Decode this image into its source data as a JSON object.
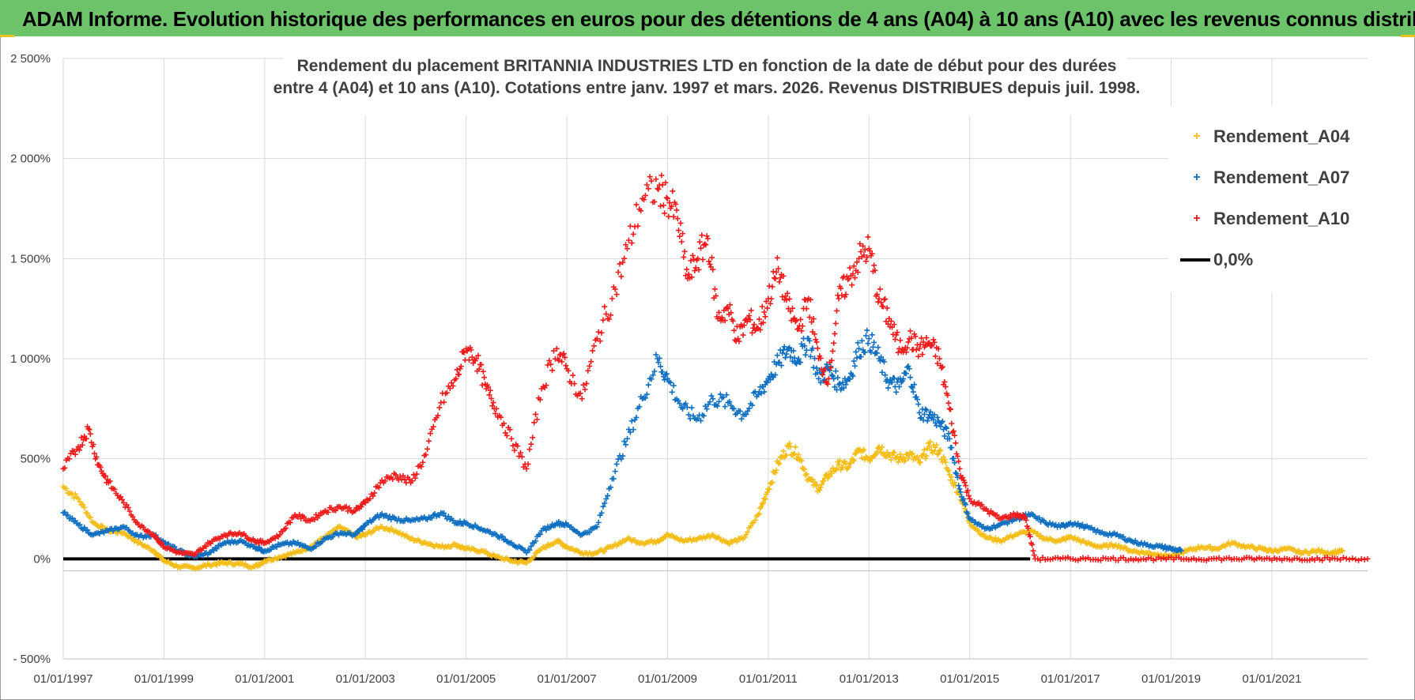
{
  "header": {
    "title": "ADAM Informe. Evolution historique des performances en euros pour des détentions de 4 ans (A04) à 10 ans (A10) avec les revenus connus distribués"
  },
  "colors": {
    "banner": "#6cc36a",
    "A04": "#f5bd17",
    "A07": "#0f6fc0",
    "A10": "#ee1c1c",
    "zero": "#000000"
  },
  "chart_data": {
    "type": "scatter",
    "title_line1": "Rendement du placement BRITANNIA  INDUSTRIES LTD en fonction de la date de début pour des durées",
    "title_line2": "entre 4 (A04) et 10 ans (A10). Cotations entre janv. 1997 et mars. 2026. Revenus DISTRIBUES depuis juil. 1998.",
    "xlabel": "",
    "ylabel": "",
    "xlim": [
      1997.0,
      2022.9
    ],
    "ylim": [
      -500,
      2500
    ],
    "x_ticks": [
      1997,
      1999,
      2001,
      2003,
      2005,
      2007,
      2009,
      2011,
      2013,
      2015,
      2017,
      2019,
      2021
    ],
    "x_tick_labels": [
      "01/01/1997",
      "01/01/1999",
      "01/01/2001",
      "01/01/2003",
      "01/01/2005",
      "01/01/2007",
      "01/01/2009",
      "01/01/2011",
      "01/01/2013",
      "01/01/2015",
      "01/01/2017",
      "01/01/2019",
      "01/01/2021"
    ],
    "y_ticks": [
      -500,
      0,
      500,
      1000,
      1500,
      2000,
      2500
    ],
    "y_tick_labels": [
      "- 500%",
      "0%",
      "500%",
      "1 000%",
      "1 500%",
      "2 000%",
      "2 500%"
    ],
    "legend_position": "top-right",
    "grid": true,
    "series": [
      {
        "name": "Rendement_A04",
        "marker": "+",
        "points": [
          [
            1997.0,
            360
          ],
          [
            1997.3,
            300
          ],
          [
            1997.6,
            180
          ],
          [
            1997.9,
            140
          ],
          [
            1998.2,
            130
          ],
          [
            1998.5,
            80
          ],
          [
            1998.8,
            40
          ],
          [
            1999.0,
            -10
          ],
          [
            1999.3,
            -40
          ],
          [
            1999.6,
            -45
          ],
          [
            1999.9,
            -30
          ],
          [
            2000.2,
            -20
          ],
          [
            2000.5,
            -25
          ],
          [
            2000.8,
            -40
          ],
          [
            2001.0,
            -10
          ],
          [
            2001.3,
            10
          ],
          [
            2001.6,
            30
          ],
          [
            2001.9,
            60
          ],
          [
            2002.2,
            110
          ],
          [
            2002.5,
            160
          ],
          [
            2002.8,
            110
          ],
          [
            2003.0,
            120
          ],
          [
            2003.3,
            160
          ],
          [
            2003.6,
            140
          ],
          [
            2003.9,
            100
          ],
          [
            2004.2,
            80
          ],
          [
            2004.5,
            60
          ],
          [
            2004.8,
            70
          ],
          [
            2005.0,
            50
          ],
          [
            2005.3,
            40
          ],
          [
            2005.6,
            10
          ],
          [
            2005.9,
            -10
          ],
          [
            2006.2,
            -20
          ],
          [
            2006.5,
            50
          ],
          [
            2006.8,
            90
          ],
          [
            2007.0,
            60
          ],
          [
            2007.3,
            30
          ],
          [
            2007.6,
            30
          ],
          [
            2007.9,
            60
          ],
          [
            2008.2,
            100
          ],
          [
            2008.5,
            80
          ],
          [
            2008.8,
            90
          ],
          [
            2009.0,
            120
          ],
          [
            2009.3,
            90
          ],
          [
            2009.6,
            100
          ],
          [
            2009.9,
            120
          ],
          [
            2010.2,
            80
          ],
          [
            2010.5,
            100
          ],
          [
            2010.8,
            220
          ],
          [
            2011.0,
            350
          ],
          [
            2011.2,
            480
          ],
          [
            2011.4,
            560
          ],
          [
            2011.6,
            520
          ],
          [
            2011.8,
            400
          ],
          [
            2012.0,
            350
          ],
          [
            2012.2,
            420
          ],
          [
            2012.4,
            470
          ],
          [
            2012.6,
            460
          ],
          [
            2012.8,
            540
          ],
          [
            2013.0,
            500
          ],
          [
            2013.2,
            560
          ],
          [
            2013.4,
            520
          ],
          [
            2013.6,
            500
          ],
          [
            2013.8,
            520
          ],
          [
            2014.0,
            480
          ],
          [
            2014.2,
            560
          ],
          [
            2014.4,
            540
          ],
          [
            2014.6,
            420
          ],
          [
            2014.8,
            320
          ],
          [
            2015.0,
            180
          ],
          [
            2015.3,
            110
          ],
          [
            2015.6,
            90
          ],
          [
            2015.9,
            120
          ],
          [
            2016.2,
            140
          ],
          [
            2016.5,
            100
          ],
          [
            2016.8,
            90
          ],
          [
            2017.0,
            110
          ],
          [
            2017.3,
            80
          ],
          [
            2017.6,
            60
          ],
          [
            2017.9,
            70
          ],
          [
            2018.2,
            40
          ],
          [
            2018.5,
            30
          ],
          [
            2018.8,
            20
          ],
          [
            2019.0,
            10
          ],
          [
            2019.3,
            40
          ],
          [
            2019.6,
            60
          ],
          [
            2019.9,
            50
          ],
          [
            2020.2,
            80
          ],
          [
            2020.5,
            60
          ],
          [
            2020.8,
            50
          ],
          [
            2021.0,
            40
          ],
          [
            2021.3,
            50
          ],
          [
            2021.6,
            30
          ],
          [
            2021.9,
            40
          ],
          [
            2022.2,
            30
          ],
          [
            2022.4,
            40
          ]
        ]
      },
      {
        "name": "Rendement_A07",
        "marker": "+",
        "points": [
          [
            1997.0,
            230
          ],
          [
            1997.3,
            170
          ],
          [
            1997.6,
            120
          ],
          [
            1997.9,
            140
          ],
          [
            1998.2,
            160
          ],
          [
            1998.5,
            110
          ],
          [
            1998.8,
            120
          ],
          [
            1999.0,
            80
          ],
          [
            1999.3,
            40
          ],
          [
            1999.6,
            10
          ],
          [
            1999.9,
            30
          ],
          [
            2000.2,
            80
          ],
          [
            2000.5,
            90
          ],
          [
            2000.8,
            60
          ],
          [
            2001.0,
            40
          ],
          [
            2001.3,
            70
          ],
          [
            2001.6,
            80
          ],
          [
            2001.9,
            50
          ],
          [
            2002.2,
            100
          ],
          [
            2002.5,
            130
          ],
          [
            2002.8,
            120
          ],
          [
            2003.0,
            170
          ],
          [
            2003.3,
            220
          ],
          [
            2003.6,
            200
          ],
          [
            2003.9,
            190
          ],
          [
            2004.2,
            200
          ],
          [
            2004.5,
            230
          ],
          [
            2004.8,
            180
          ],
          [
            2005.0,
            180
          ],
          [
            2005.3,
            150
          ],
          [
            2005.6,
            120
          ],
          [
            2005.9,
            80
          ],
          [
            2006.2,
            30
          ],
          [
            2006.5,
            140
          ],
          [
            2006.8,
            180
          ],
          [
            2007.0,
            170
          ],
          [
            2007.3,
            120
          ],
          [
            2007.6,
            160
          ],
          [
            2007.9,
            400
          ],
          [
            2008.2,
            600
          ],
          [
            2008.5,
            800
          ],
          [
            2008.8,
            1000
          ],
          [
            2009.0,
            900
          ],
          [
            2009.3,
            750
          ],
          [
            2009.6,
            700
          ],
          [
            2009.9,
            800
          ],
          [
            2010.2,
            780
          ],
          [
            2010.5,
            720
          ],
          [
            2010.8,
            820
          ],
          [
            2011.0,
            900
          ],
          [
            2011.2,
            980
          ],
          [
            2011.4,
            1050
          ],
          [
            2011.6,
            1000
          ],
          [
            2011.8,
            1100
          ],
          [
            2012.0,
            900
          ],
          [
            2012.2,
            950
          ],
          [
            2012.4,
            870
          ],
          [
            2012.6,
            900
          ],
          [
            2012.8,
            1050
          ],
          [
            2013.0,
            1100
          ],
          [
            2013.2,
            1000
          ],
          [
            2013.4,
            880
          ],
          [
            2013.6,
            860
          ],
          [
            2013.8,
            950
          ],
          [
            2014.0,
            730
          ],
          [
            2014.2,
            720
          ],
          [
            2014.4,
            680
          ],
          [
            2014.6,
            600
          ],
          [
            2014.8,
            350
          ],
          [
            2015.0,
            200
          ],
          [
            2015.3,
            150
          ],
          [
            2015.6,
            170
          ],
          [
            2015.9,
            200
          ],
          [
            2016.2,
            220
          ],
          [
            2016.5,
            180
          ],
          [
            2016.8,
            160
          ],
          [
            2017.0,
            180
          ],
          [
            2017.3,
            160
          ],
          [
            2017.6,
            130
          ],
          [
            2017.9,
            120
          ],
          [
            2018.2,
            90
          ],
          [
            2018.5,
            70
          ],
          [
            2018.8,
            60
          ],
          [
            2019.0,
            50
          ],
          [
            2019.2,
            40
          ]
        ]
      },
      {
        "name": "Rendement_A10",
        "marker": "+",
        "points": [
          [
            1997.0,
            450
          ],
          [
            1997.3,
            560
          ],
          [
            1997.5,
            650
          ],
          [
            1997.7,
            470
          ],
          [
            1997.9,
            380
          ],
          [
            1998.2,
            280
          ],
          [
            1998.5,
            170
          ],
          [
            1998.8,
            120
          ],
          [
            1999.0,
            60
          ],
          [
            1999.3,
            30
          ],
          [
            1999.6,
            20
          ],
          [
            1999.9,
            80
          ],
          [
            2000.2,
            120
          ],
          [
            2000.5,
            130
          ],
          [
            2000.8,
            90
          ],
          [
            2001.0,
            80
          ],
          [
            2001.3,
            120
          ],
          [
            2001.6,
            220
          ],
          [
            2001.9,
            190
          ],
          [
            2002.2,
            240
          ],
          [
            2002.5,
            260
          ],
          [
            2002.8,
            240
          ],
          [
            2003.0,
            280
          ],
          [
            2003.3,
            380
          ],
          [
            2003.6,
            420
          ],
          [
            2003.9,
            380
          ],
          [
            2004.2,
            520
          ],
          [
            2004.5,
            780
          ],
          [
            2004.8,
            900
          ],
          [
            2005.0,
            1050
          ],
          [
            2005.2,
            1000
          ],
          [
            2005.4,
            850
          ],
          [
            2005.6,
            750
          ],
          [
            2005.9,
            600
          ],
          [
            2006.2,
            450
          ],
          [
            2006.5,
            850
          ],
          [
            2006.8,
            1050
          ],
          [
            2007.0,
            950
          ],
          [
            2007.3,
            800
          ],
          [
            2007.6,
            1100
          ],
          [
            2007.9,
            1300
          ],
          [
            2008.2,
            1550
          ],
          [
            2008.5,
            1800
          ],
          [
            2008.8,
            1850
          ],
          [
            2009.0,
            1800
          ],
          [
            2009.2,
            1700
          ],
          [
            2009.4,
            1400
          ],
          [
            2009.6,
            1500
          ],
          [
            2009.8,
            1600
          ],
          [
            2010.0,
            1200
          ],
          [
            2010.2,
            1250
          ],
          [
            2010.4,
            1100
          ],
          [
            2010.6,
            1200
          ],
          [
            2010.8,
            1150
          ],
          [
            2011.0,
            1300
          ],
          [
            2011.2,
            1450
          ],
          [
            2011.4,
            1250
          ],
          [
            2011.6,
            1150
          ],
          [
            2011.8,
            1300
          ],
          [
            2012.0,
            1000
          ],
          [
            2012.2,
            900
          ],
          [
            2012.4,
            1300
          ],
          [
            2012.6,
            1400
          ],
          [
            2012.8,
            1500
          ],
          [
            2013.0,
            1550
          ],
          [
            2013.2,
            1300
          ],
          [
            2013.4,
            1200
          ],
          [
            2013.6,
            1050
          ],
          [
            2013.8,
            1100
          ],
          [
            2014.0,
            1050
          ],
          [
            2014.2,
            1080
          ],
          [
            2014.4,
            1000
          ],
          [
            2014.6,
            750
          ],
          [
            2014.8,
            450
          ],
          [
            2015.0,
            300
          ],
          [
            2015.3,
            250
          ],
          [
            2015.6,
            200
          ],
          [
            2015.9,
            220
          ],
          [
            2016.1,
            210
          ],
          [
            2016.3,
            0
          ],
          [
            2016.8,
            0
          ],
          [
            2017.3,
            0
          ],
          [
            2017.8,
            0
          ],
          [
            2018.3,
            0
          ],
          [
            2018.8,
            0
          ],
          [
            2019.3,
            0
          ],
          [
            2019.8,
            0
          ],
          [
            2020.3,
            0
          ],
          [
            2020.8,
            0
          ],
          [
            2021.3,
            0
          ],
          [
            2021.8,
            0
          ],
          [
            2022.3,
            0
          ],
          [
            2022.9,
            0
          ]
        ]
      },
      {
        "name": "0,0%",
        "marker": "line",
        "points": [
          [
            1997.0,
            0
          ],
          [
            2016.2,
            0
          ]
        ]
      }
    ]
  }
}
